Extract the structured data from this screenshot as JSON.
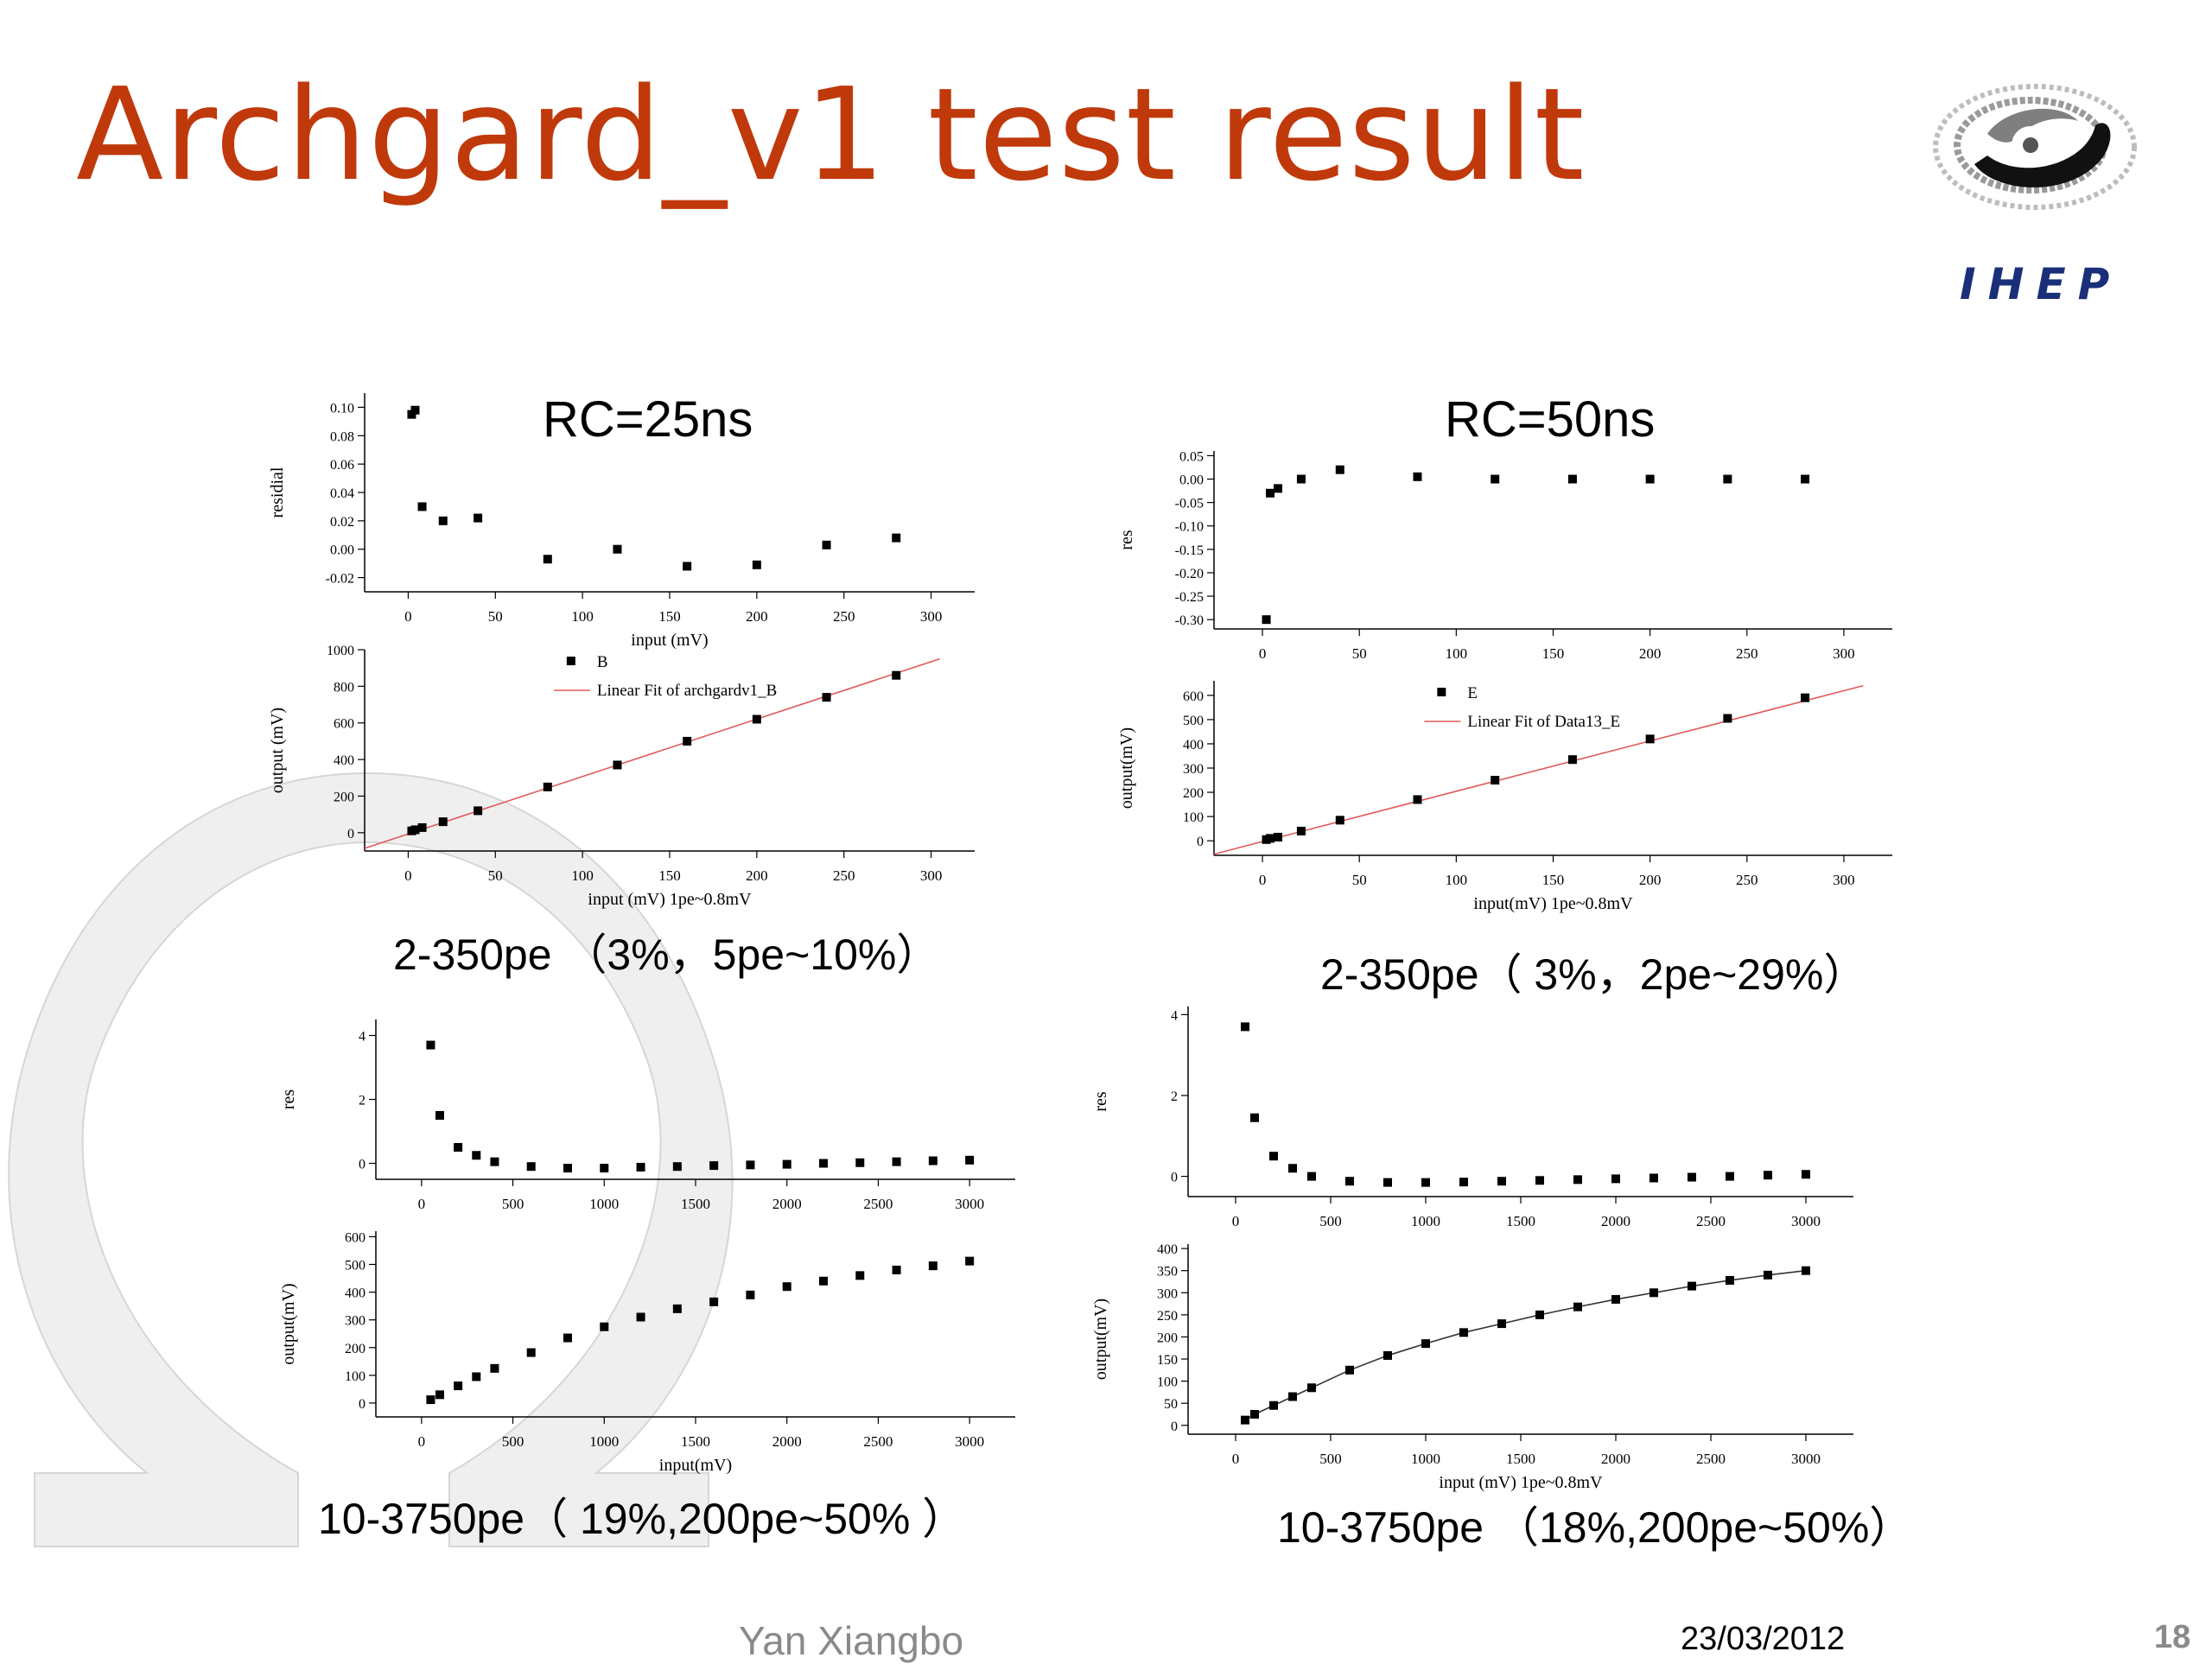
{
  "slide": {
    "title": "Archgard_v1 test result",
    "logo_text": "IHEP",
    "footer": {
      "author": "Yan Xiangbo",
      "date": "23/03/2012",
      "page": "18"
    }
  },
  "panels": {
    "rc25": {
      "title": "RC=25ns",
      "caption_low": "2-350pe （3%，5pe~10%）",
      "caption_high": "10-3750pe（ 19%,200pe~50% ）"
    },
    "rc50": {
      "title": "RC=50ns",
      "caption_low": "2-350pe（ 3%，2pe~29%）",
      "caption_high": "10-3750pe （18%,200pe~50%）"
    }
  },
  "chart_data": [
    {
      "id": "rc25_low_res",
      "type": "scatter",
      "xlabel": "input (mV)",
      "ylabel": "residial",
      "xlim": [
        -25,
        325
      ],
      "ylim": [
        -0.03,
        0.11
      ],
      "xticks": [
        0,
        50,
        100,
        150,
        200,
        250,
        300
      ],
      "yticks": [
        -0.02,
        0.0,
        0.02,
        0.04,
        0.06,
        0.08,
        0.1
      ],
      "ytick_labels": [
        "-0.02",
        "0.00",
        "0.02",
        "0.04",
        "0.06",
        "0.08",
        "0.10"
      ],
      "x": [
        2,
        4,
        8,
        20,
        40,
        80,
        120,
        160,
        200,
        240,
        280
      ],
      "y": [
        0.095,
        0.098,
        0.03,
        0.02,
        0.022,
        -0.007,
        0.0,
        -0.012,
        -0.011,
        0.003,
        0.008
      ]
    },
    {
      "id": "rc25_low_out",
      "type": "scatter",
      "xlabel": "input (mV)  1pe~0.8mV",
      "ylabel": "output (mV)",
      "xlim": [
        -25,
        325
      ],
      "ylim": [
        -100,
        1000
      ],
      "xticks": [
        0,
        50,
        100,
        150,
        200,
        250,
        300
      ],
      "yticks": [
        0,
        200,
        400,
        600,
        800,
        1000
      ],
      "ytick_labels": [
        "0",
        "200",
        "400",
        "600",
        "800",
        "1000"
      ],
      "legend": [
        "B",
        "Linear Fit of archgardv1_B"
      ],
      "fit_line": [
        [
          -25,
          -85
        ],
        [
          305,
          950
        ]
      ],
      "x": [
        2,
        4,
        8,
        20,
        40,
        80,
        120,
        160,
        200,
        240,
        280
      ],
      "y": [
        10,
        16,
        28,
        60,
        120,
        250,
        370,
        500,
        620,
        740,
        860
      ]
    },
    {
      "id": "rc25_high_res",
      "type": "scatter",
      "ylabel": "res",
      "xlim": [
        -250,
        3250
      ],
      "ylim": [
        -0.5,
        4.5
      ],
      "xticks": [
        0,
        500,
        1000,
        1500,
        2000,
        2500,
        3000
      ],
      "yticks": [
        0,
        2,
        4
      ],
      "ytick_labels": [
        "0",
        "2",
        "4"
      ],
      "x": [
        50,
        100,
        200,
        300,
        400,
        600,
        800,
        1000,
        1200,
        1400,
        1600,
        1800,
        2000,
        2200,
        2400,
        2600,
        2800,
        3000
      ],
      "y": [
        3.7,
        1.5,
        0.5,
        0.25,
        0.05,
        -0.1,
        -0.15,
        -0.15,
        -0.12,
        -0.1,
        -0.07,
        -0.05,
        -0.03,
        0.0,
        0.02,
        0.05,
        0.08,
        0.1
      ]
    },
    {
      "id": "rc25_high_out",
      "type": "scatter",
      "xlabel": "input(mV)",
      "ylabel": "output(mV)",
      "xlim": [
        -250,
        3250
      ],
      "ylim": [
        -50,
        620
      ],
      "xticks": [
        0,
        500,
        1000,
        1500,
        2000,
        2500,
        3000
      ],
      "yticks": [
        0,
        100,
        200,
        300,
        400,
        500,
        600
      ],
      "ytick_labels": [
        "0",
        "100",
        "200",
        "300",
        "400",
        "500",
        "600"
      ],
      "x": [
        50,
        100,
        200,
        300,
        400,
        600,
        800,
        1000,
        1200,
        1400,
        1600,
        1800,
        2000,
        2200,
        2400,
        2600,
        2800,
        3000
      ],
      "y": [
        12,
        30,
        62,
        95,
        125,
        182,
        235,
        275,
        310,
        340,
        365,
        390,
        420,
        440,
        460,
        480,
        495,
        512
      ]
    },
    {
      "id": "rc50_low_res",
      "type": "scatter",
      "ylabel": "res",
      "xlim": [
        -25,
        325
      ],
      "ylim": [
        -0.32,
        0.06
      ],
      "xticks": [
        0,
        50,
        100,
        150,
        200,
        250,
        300
      ],
      "yticks": [
        -0.3,
        -0.25,
        -0.2,
        -0.15,
        -0.1,
        -0.05,
        0.0,
        0.05
      ],
      "ytick_labels": [
        "-0.30",
        "-0.25",
        "-0.20",
        "-0.15",
        "-0.10",
        "-0.05",
        "0.00",
        "0.05"
      ],
      "x": [
        2,
        4,
        8,
        20,
        40,
        80,
        120,
        160,
        200,
        240,
        280
      ],
      "y": [
        -0.3,
        -0.03,
        -0.02,
        0.0,
        0.02,
        0.005,
        0.0,
        0.0,
        0.0,
        0.0,
        0.0
      ]
    },
    {
      "id": "rc50_low_out",
      "type": "scatter",
      "xlabel": "input(mV)  1pe~0.8mV",
      "ylabel": "output(mV)",
      "xlim": [
        -25,
        325
      ],
      "ylim": [
        -60,
        660
      ],
      "xticks": [
        0,
        50,
        100,
        150,
        200,
        250,
        300
      ],
      "yticks": [
        0,
        100,
        200,
        300,
        400,
        500,
        600
      ],
      "ytick_labels": [
        "0",
        "100",
        "200",
        "300",
        "400",
        "500",
        "600"
      ],
      "legend": [
        "E",
        "Linear Fit of Data13_E"
      ],
      "fit_line": [
        [
          -25,
          -55
        ],
        [
          310,
          640
        ]
      ],
      "x": [
        2,
        4,
        8,
        20,
        40,
        80,
        120,
        160,
        200,
        240,
        280
      ],
      "y": [
        5,
        10,
        15,
        40,
        85,
        170,
        250,
        335,
        420,
        505,
        590
      ]
    },
    {
      "id": "rc50_high_res",
      "type": "scatter",
      "ylabel": "res",
      "xlim": [
        -250,
        3250
      ],
      "ylim": [
        -0.5,
        4.2
      ],
      "xticks": [
        0,
        500,
        1000,
        1500,
        2000,
        2500,
        3000
      ],
      "yticks": [
        0,
        2,
        4
      ],
      "ytick_labels": [
        "0",
        "2",
        "4"
      ],
      "x": [
        50,
        100,
        200,
        300,
        400,
        600,
        800,
        1000,
        1200,
        1400,
        1600,
        1800,
        2000,
        2200,
        2400,
        2600,
        2800,
        3000
      ],
      "y": [
        3.7,
        1.45,
        0.5,
        0.2,
        0.0,
        -0.12,
        -0.15,
        -0.15,
        -0.14,
        -0.12,
        -0.1,
        -0.08,
        -0.06,
        -0.04,
        -0.02,
        0.0,
        0.03,
        0.05
      ]
    },
    {
      "id": "rc50_high_out",
      "type": "line",
      "xlabel": "input (mV)  1pe~0.8mV",
      "ylabel": "output(mV)",
      "xlim": [
        -250,
        3250
      ],
      "ylim": [
        -20,
        410
      ],
      "xticks": [
        0,
        500,
        1000,
        1500,
        2000,
        2500,
        3000
      ],
      "yticks": [
        0,
        50,
        100,
        150,
        200,
        250,
        300,
        350,
        400
      ],
      "ytick_labels": [
        "0",
        "50",
        "100",
        "150",
        "200",
        "250",
        "300",
        "350",
        "400"
      ],
      "x": [
        50,
        100,
        200,
        300,
        400,
        600,
        800,
        1000,
        1200,
        1400,
        1600,
        1800,
        2000,
        2200,
        2400,
        2600,
        2800,
        3000
      ],
      "y": [
        12,
        25,
        45,
        65,
        85,
        125,
        158,
        185,
        210,
        230,
        250,
        268,
        285,
        300,
        315,
        328,
        340,
        350
      ]
    }
  ]
}
